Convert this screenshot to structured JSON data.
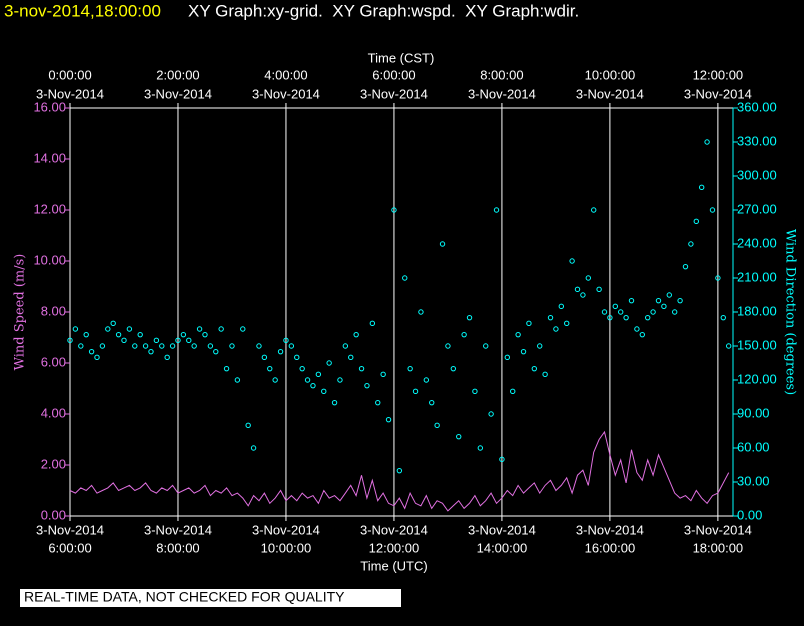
{
  "chart_data": {
    "type": "line",
    "title": "3-nov-2014,18:00:00",
    "subtitle": "XY Graph:xy-grid.  XY Graph:wspd.  XY Graph:wdir.",
    "top_axis_label": "Time (CST)",
    "xlabel": "Time (UTC)",
    "ylabel": "Wind Speed (m/s)",
    "y2label": "Wind Direction (degrees)",
    "footnote": "REAL-TIME DATA, NOT CHECKED FOR QUALITY",
    "grid": true,
    "xlim": [
      6,
      18.28
    ],
    "xticks": [
      {
        "value": 6,
        "label": "6:00:00",
        "date": "3-Nov-2014"
      },
      {
        "value": 8,
        "label": "8:00:00",
        "date": "3-Nov-2014"
      },
      {
        "value": 10,
        "label": "10:00:00",
        "date": "3-Nov-2014"
      },
      {
        "value": 12,
        "label": "12:00:00",
        "date": "3-Nov-2014"
      },
      {
        "value": 14,
        "label": "14:00:00",
        "date": "3-Nov-2014"
      },
      {
        "value": 16,
        "label": "16:00:00",
        "date": "3-Nov-2014"
      },
      {
        "value": 18,
        "label": "18:00:00",
        "date": "3-Nov-2014"
      }
    ],
    "top_xticks": [
      {
        "value": 6,
        "label": "0:00:00",
        "date": "3-Nov-2014"
      },
      {
        "value": 8,
        "label": "2:00:00",
        "date": "3-Nov-2014"
      },
      {
        "value": 10,
        "label": "4:00:00",
        "date": "3-Nov-2014"
      },
      {
        "value": 12,
        "label": "6:00:00",
        "date": "3-Nov-2014"
      },
      {
        "value": 14,
        "label": "8:00:00",
        "date": "3-Nov-2014"
      },
      {
        "value": 16,
        "label": "10:00:00",
        "date": "3-Nov-2014"
      },
      {
        "value": 18,
        "label": "12:00:00",
        "date": "3-Nov-2014"
      }
    ],
    "ylim": [
      0,
      16
    ],
    "yticks": [
      {
        "value": 0,
        "label": "0.00"
      },
      {
        "value": 2,
        "label": "2.00"
      },
      {
        "value": 4,
        "label": "4.00"
      },
      {
        "value": 6,
        "label": "6.00"
      },
      {
        "value": 8,
        "label": "8.00"
      },
      {
        "value": 10,
        "label": "10.00"
      },
      {
        "value": 12,
        "label": "12.00"
      },
      {
        "value": 14,
        "label": "14.00"
      },
      {
        "value": 16,
        "label": "16.00"
      }
    ],
    "y2lim": [
      0,
      360
    ],
    "y2ticks": [
      {
        "value": 0,
        "label": "0.00"
      },
      {
        "value": 30,
        "label": "30.00"
      },
      {
        "value": 60,
        "label": "60.00"
      },
      {
        "value": 90,
        "label": "90.00"
      },
      {
        "value": 120,
        "label": "120.00"
      },
      {
        "value": 150,
        "label": "150.00"
      },
      {
        "value": 180,
        "label": "180.00"
      },
      {
        "value": 210,
        "label": "210.00"
      },
      {
        "value": 240,
        "label": "240.00"
      },
      {
        "value": 270,
        "label": "270.00"
      },
      {
        "value": 300,
        "label": "300.00"
      },
      {
        "value": 330,
        "label": "330.00"
      },
      {
        "value": 360,
        "label": "360.00"
      }
    ],
    "x": [
      6.0,
      6.1,
      6.2,
      6.3,
      6.4,
      6.5,
      6.6,
      6.7,
      6.8,
      6.9,
      7.0,
      7.1,
      7.2,
      7.3,
      7.4,
      7.5,
      7.6,
      7.7,
      7.8,
      7.9,
      8.0,
      8.1,
      8.2,
      8.3,
      8.4,
      8.5,
      8.6,
      8.7,
      8.8,
      8.9,
      9.0,
      9.1,
      9.2,
      9.3,
      9.4,
      9.5,
      9.6,
      9.7,
      9.8,
      9.9,
      10.0,
      10.1,
      10.2,
      10.3,
      10.4,
      10.5,
      10.6,
      10.7,
      10.8,
      10.9,
      11.0,
      11.1,
      11.2,
      11.3,
      11.4,
      11.5,
      11.6,
      11.7,
      11.8,
      11.9,
      12.0,
      12.1,
      12.2,
      12.3,
      12.4,
      12.5,
      12.6,
      12.7,
      12.8,
      12.9,
      13.0,
      13.1,
      13.2,
      13.3,
      13.4,
      13.5,
      13.6,
      13.7,
      13.8,
      13.9,
      14.0,
      14.1,
      14.2,
      14.3,
      14.4,
      14.5,
      14.6,
      14.7,
      14.8,
      14.9,
      15.0,
      15.1,
      15.2,
      15.3,
      15.4,
      15.5,
      15.6,
      15.7,
      15.8,
      15.9,
      16.0,
      16.1,
      16.2,
      16.3,
      16.4,
      16.5,
      16.6,
      16.7,
      16.8,
      16.9,
      17.0,
      17.1,
      17.2,
      17.3,
      17.4,
      17.5,
      17.6,
      17.7,
      17.8,
      17.9,
      18.0,
      18.1,
      18.2
    ],
    "series": [
      {
        "type": "line",
        "axis": "y",
        "color": "#e070e0",
        "values": [
          1.0,
          0.9,
          1.1,
          1.0,
          1.2,
          0.9,
          1.0,
          1.1,
          1.3,
          1.0,
          1.1,
          1.2,
          1.0,
          1.1,
          1.3,
          1.0,
          0.9,
          1.1,
          1.0,
          1.2,
          0.9,
          1.0,
          1.1,
          0.9,
          1.0,
          1.2,
          0.8,
          1.0,
          0.9,
          1.1,
          0.8,
          0.9,
          0.7,
          0.4,
          0.8,
          0.6,
          0.9,
          0.5,
          0.7,
          1.0,
          0.6,
          0.8,
          0.6,
          0.9,
          0.7,
          0.8,
          0.5,
          1.0,
          0.7,
          0.8,
          0.6,
          0.9,
          1.2,
          0.8,
          1.6,
          0.7,
          1.4,
          0.6,
          0.9,
          0.5,
          0.4,
          0.7,
          0.3,
          0.9,
          0.5,
          0.4,
          0.8,
          0.3,
          0.6,
          0.5,
          0.2,
          0.4,
          0.6,
          0.3,
          0.5,
          0.8,
          0.4,
          0.6,
          0.9,
          0.5,
          0.7,
          1.0,
          0.8,
          1.2,
          0.9,
          1.1,
          1.3,
          0.9,
          1.2,
          1.4,
          1.0,
          1.2,
          1.5,
          0.9,
          1.6,
          1.8,
          1.2,
          2.5,
          3.0,
          3.3,
          2.4,
          1.6,
          2.2,
          1.3,
          2.6,
          1.7,
          1.4,
          2.2,
          1.6,
          2.4,
          1.9,
          1.4,
          0.9,
          0.7,
          0.8,
          0.6,
          1.0,
          0.7,
          0.5,
          0.8,
          0.9,
          1.3,
          1.7
        ]
      },
      {
        "type": "scatter",
        "axis": "y2",
        "color": "#00ffff",
        "values": [
          155,
          165,
          150,
          160,
          145,
          140,
          150,
          165,
          170,
          160,
          155,
          165,
          150,
          160,
          150,
          145,
          155,
          150,
          140,
          150,
          155,
          160,
          155,
          150,
          165,
          160,
          150,
          145,
          165,
          130,
          150,
          120,
          165,
          80,
          60,
          150,
          140,
          130,
          120,
          145,
          155,
          150,
          140,
          130,
          120,
          115,
          125,
          110,
          135,
          100,
          120,
          150,
          140,
          160,
          130,
          115,
          170,
          100,
          125,
          85,
          270,
          40,
          210,
          130,
          110,
          180,
          120,
          100,
          80,
          240,
          150,
          130,
          70,
          160,
          175,
          110,
          60,
          150,
          90,
          270,
          50,
          140,
          110,
          160,
          145,
          170,
          130,
          150,
          125,
          175,
          165,
          185,
          170,
          225,
          200,
          195,
          210,
          270,
          200,
          180,
          175,
          185,
          180,
          175,
          190,
          165,
          160,
          175,
          180,
          190,
          185,
          195,
          180,
          190,
          220,
          240,
          260,
          290,
          330,
          270,
          210,
          175,
          150
        ]
      }
    ]
  }
}
